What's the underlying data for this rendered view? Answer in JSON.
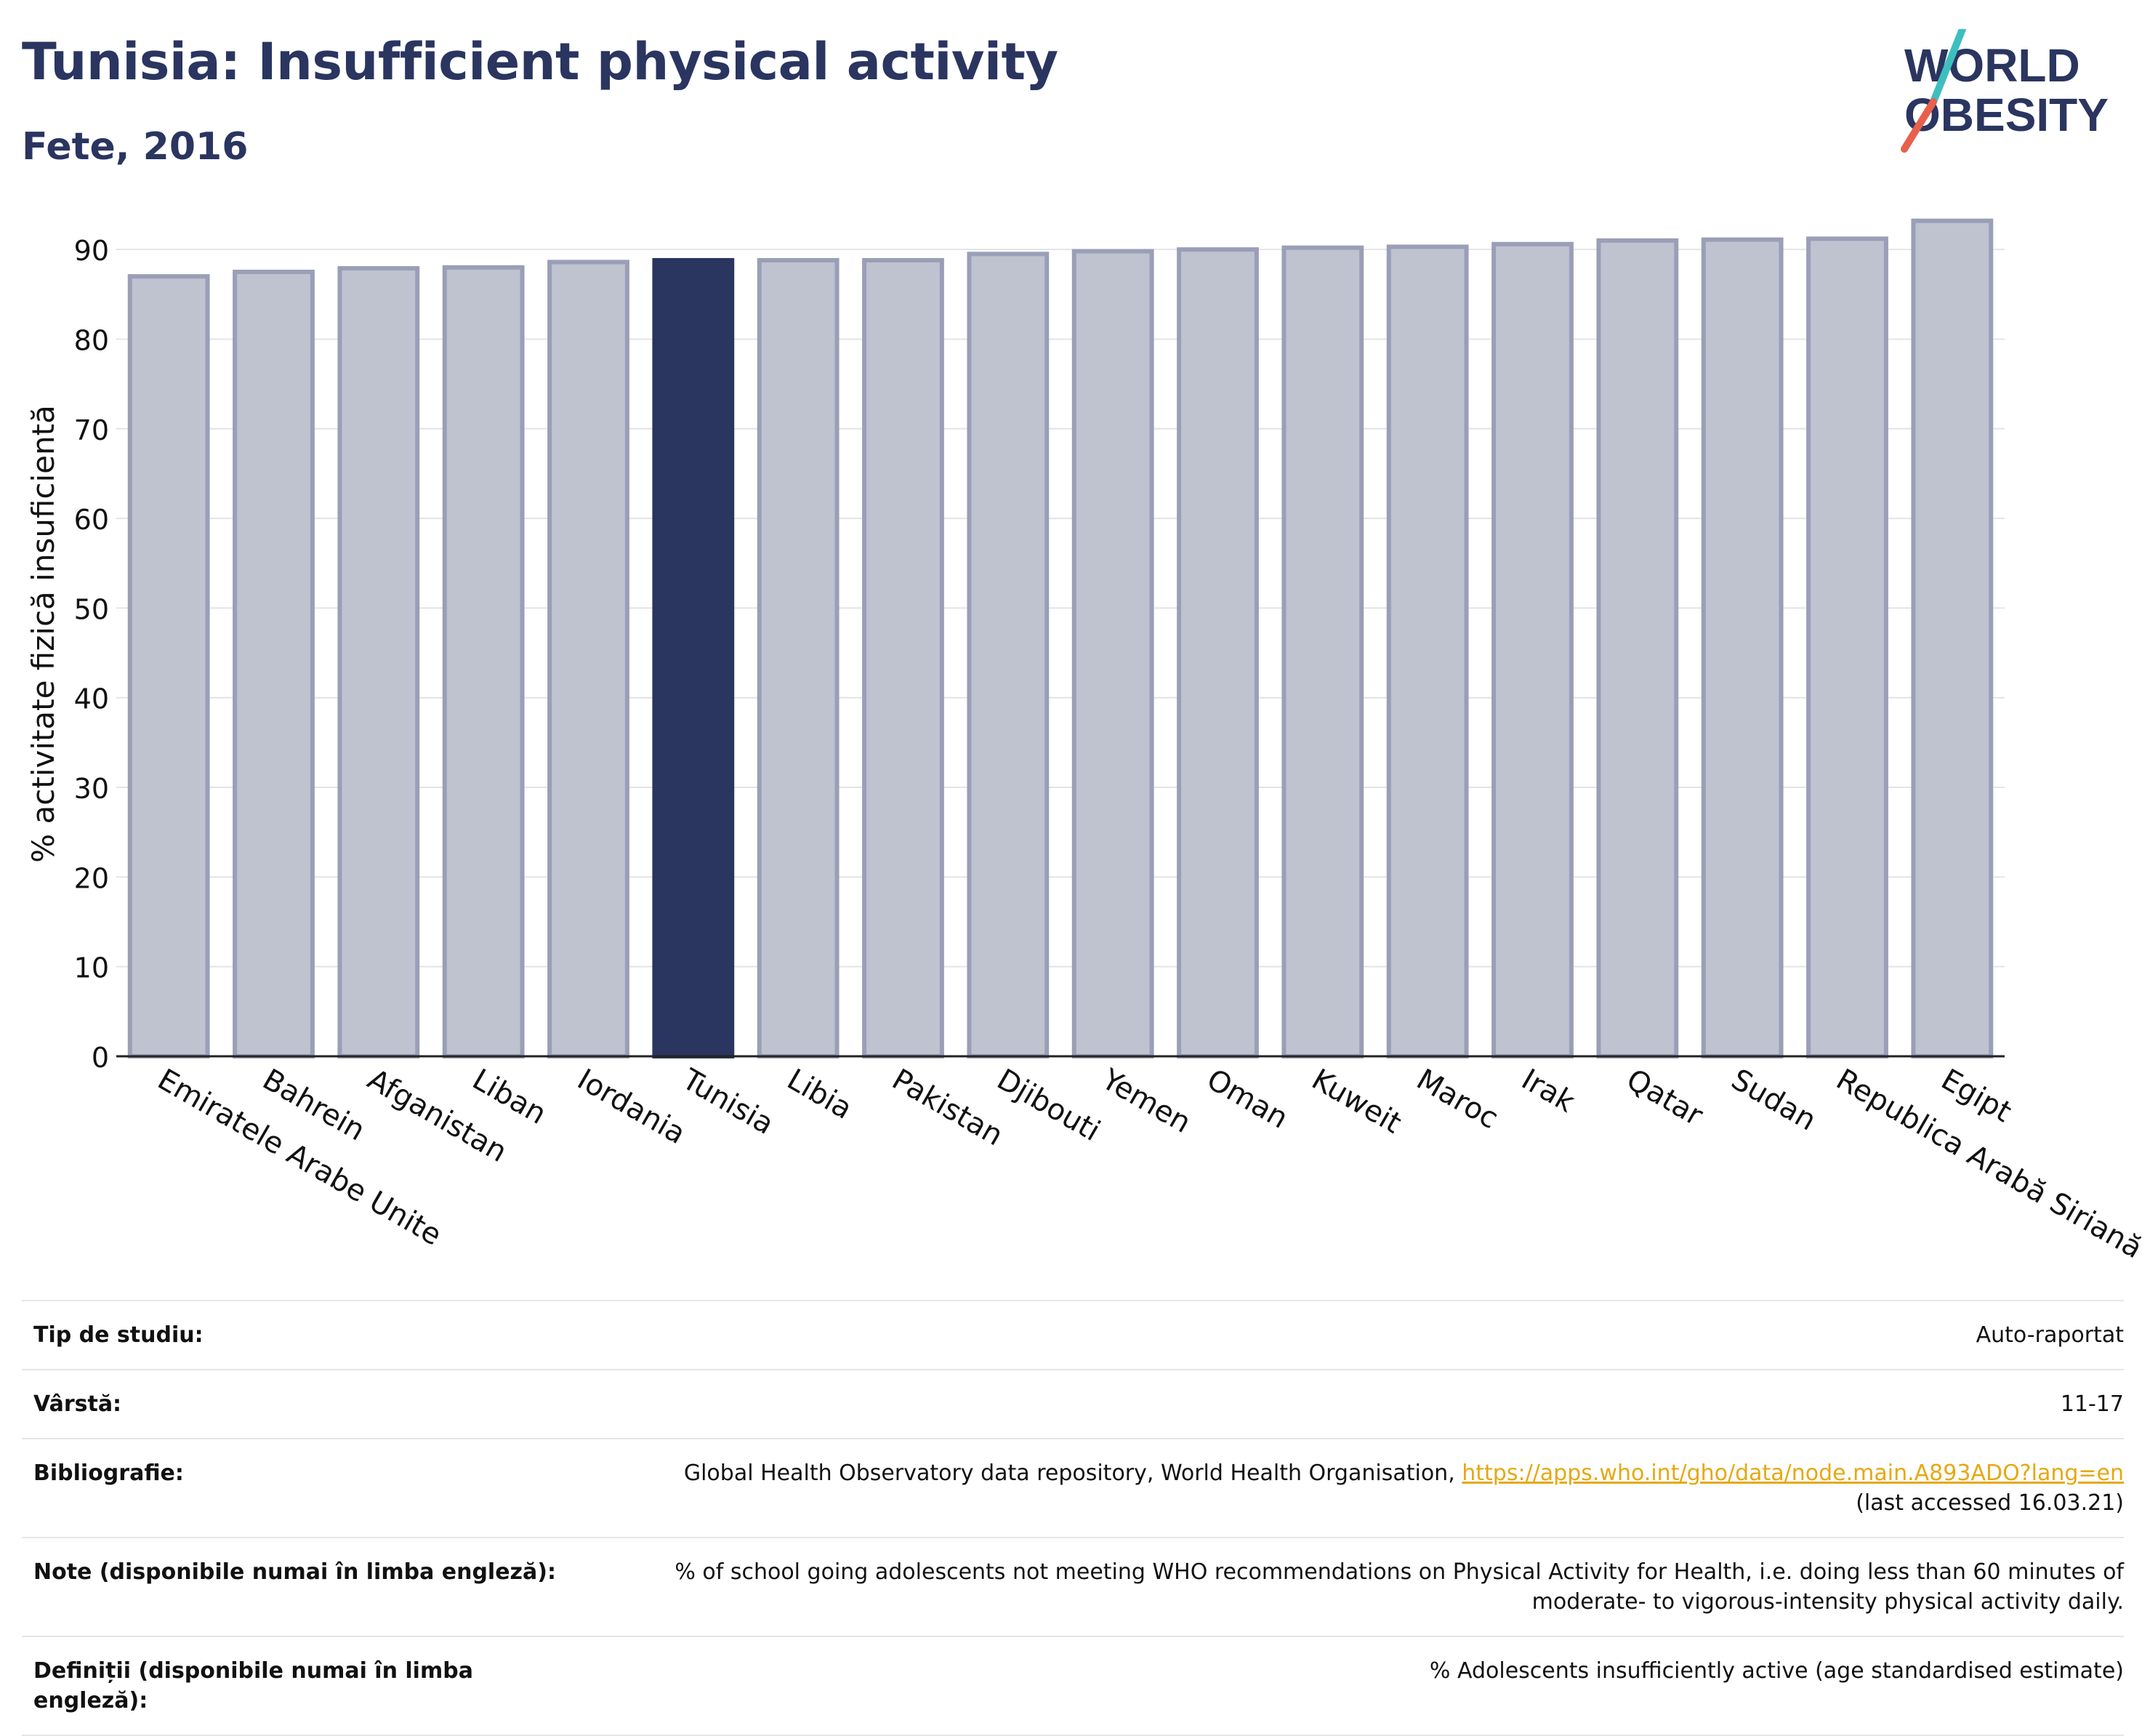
{
  "header": {
    "title": "Tunisia: Insufficient physical activity",
    "subtitle": "Fete, 2016"
  },
  "logo": {
    "line1": "WORLD",
    "line2": "OBESITY",
    "slash_colors": [
      "#3dbfbf",
      "#e8604c"
    ]
  },
  "colors": {
    "highlight": "#2a3560",
    "bar": "#bfc2cf",
    "bar_border": "#9a9eb7",
    "text": "#2a3560",
    "link": "#e6a812"
  },
  "chart_data": {
    "type": "bar",
    "categories": [
      "Emiratele Arabe Unite",
      "Bahrein",
      "Afganistan",
      "Liban",
      "Iordania",
      "Tunisia",
      "Libia",
      "Pakistan",
      "Djibouti",
      "Yemen",
      "Oman",
      "Kuweit",
      "Maroc",
      "Irak",
      "Qatar",
      "Sudan",
      "Republica Arabă Siriană",
      "Egipt"
    ],
    "values": [
      87.0,
      87.5,
      87.9,
      88.0,
      88.6,
      88.8,
      88.8,
      88.8,
      89.5,
      89.8,
      90.0,
      90.2,
      90.3,
      90.6,
      91.0,
      91.1,
      91.2,
      93.2
    ],
    "highlight": "Tunisia",
    "ylabel": "% activitate fizică insuficientă",
    "xlabel": "",
    "ylim": [
      0,
      93.5
    ],
    "yticks": [
      0,
      10,
      20,
      30,
      40,
      50,
      60,
      70,
      80,
      90
    ],
    "grid": true
  },
  "info": {
    "study_type_label": "Tip de studiu:",
    "study_type_value": "Auto-raportat",
    "age_label": "Vârstă:",
    "age_value": "11-17",
    "bibliography_label": "Bibliografie:",
    "bibliography_text": "Global Health Observatory data repository, World Health Organisation, ",
    "bibliography_link": "https://apps.who.int/gho/data/node.main.A893ADO?lang=en",
    "bibliography_accessed": "(last accessed 16.03.21)",
    "notes_label": "Note (disponibile numai în limba engleză):",
    "notes_line1": "% of school going adolescents not meeting WHO recommendations on Physical Activity for Health, i.e. doing less than 60 minutes of",
    "notes_line2": "moderate- to vigorous-intensity physical activity daily.",
    "definitions_label_line1": "Definiții (disponibile numai în limba",
    "definitions_label_line2": "engleză):",
    "definitions_value": "% Adolescents insufficiently active (age standardised estimate)"
  }
}
